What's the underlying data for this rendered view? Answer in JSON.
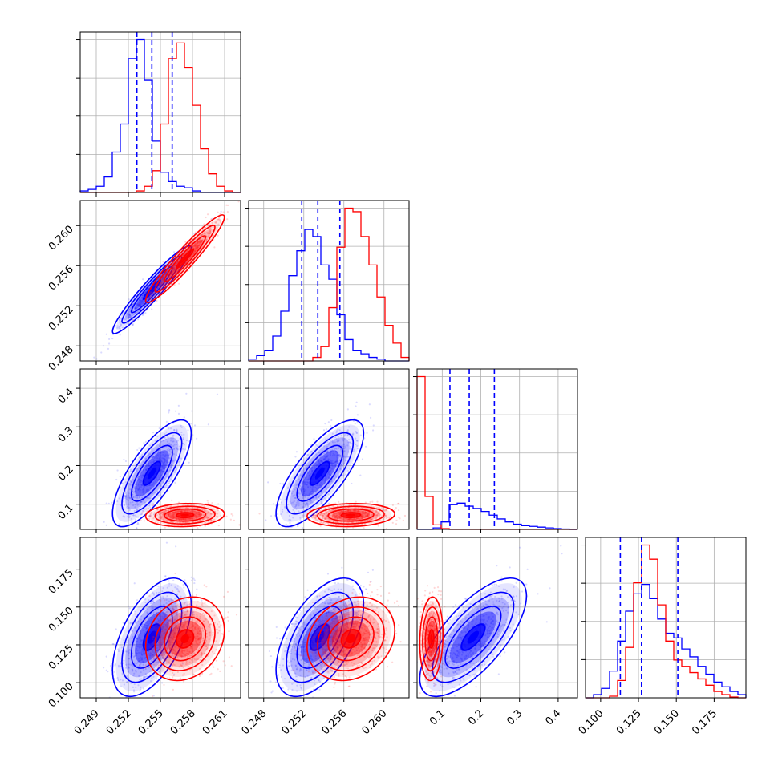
{
  "chart_data": {
    "type": "corner",
    "title": "",
    "series": [
      {
        "name": "",
        "color": "#0000ff"
      },
      {
        "name": "",
        "color": "#ff0000"
      }
    ],
    "parameters": [
      {
        "index": 0,
        "range": [
          0.2475,
          0.2625
        ],
        "ticks": [
          0.249,
          0.252,
          0.255,
          0.258,
          0.261
        ],
        "tick_labels": [
          "0.249",
          "0.252",
          "0.255",
          "0.258",
          "0.261"
        ],
        "quantiles_blue": [
          0.2528,
          0.2542,
          0.2561
        ]
      },
      {
        "index": 1,
        "range": [
          0.2465,
          0.2625
        ],
        "ticks": [
          0.248,
          0.252,
          0.256,
          0.26
        ],
        "tick_labels": [
          "0.248",
          "0.252",
          "0.256",
          "0.260"
        ],
        "quantiles_blue": [
          0.2518,
          0.2534,
          0.2556
        ]
      },
      {
        "index": 2,
        "range": [
          0.035,
          0.45
        ],
        "ticks": [
          0.1,
          0.2,
          0.3,
          0.4
        ],
        "tick_labels": [
          "0.1",
          "0.2",
          "0.3",
          "0.4"
        ],
        "quantiles_blue": [
          0.12,
          0.17,
          0.235
        ]
      },
      {
        "index": 3,
        "range": [
          0.09,
          0.196
        ],
        "ticks": [
          0.1,
          0.125,
          0.15,
          0.175
        ],
        "tick_labels": [
          "0.100",
          "0.125",
          "0.150",
          "0.175"
        ],
        "quantiles_blue": [
          0.113,
          0.127,
          0.151
        ]
      }
    ],
    "histograms": [
      {
        "param": 0,
        "bins": 20,
        "blue": [
          1,
          2,
          4,
          10,
          26,
          44,
          86,
          98,
          72,
          33,
          13,
          7,
          4,
          3,
          1,
          0,
          0,
          0,
          0,
          0
        ],
        "red": [
          0,
          0,
          0,
          0,
          0,
          0,
          0,
          1,
          4,
          14,
          44,
          86,
          96,
          80,
          56,
          28,
          12,
          4,
          1,
          0
        ]
      },
      {
        "param": 1,
        "bins": 20,
        "blue": [
          1,
          3,
          6,
          14,
          28,
          48,
          62,
          74,
          70,
          54,
          46,
          26,
          12,
          6,
          4,
          2,
          1,
          0,
          0,
          0
        ],
        "red": [
          0,
          0,
          0,
          0,
          0,
          0,
          0,
          0,
          2,
          8,
          30,
          64,
          86,
          84,
          70,
          54,
          36,
          20,
          10,
          2
        ]
      },
      {
        "param": 2,
        "bins": 20,
        "blue": [
          0,
          0,
          4,
          20,
          66,
          70,
          62,
          56,
          48,
          38,
          28,
          20,
          14,
          10,
          8,
          6,
          4,
          2,
          1,
          0
        ],
        "red": [
          408,
          88,
          12,
          2,
          0,
          0,
          0,
          0,
          0,
          0,
          0,
          0,
          0,
          0,
          0,
          0,
          0,
          0,
          0,
          0
        ]
      },
      {
        "param": 3,
        "bins": 20,
        "blue": [
          0,
          4,
          12,
          34,
          72,
          110,
          132,
          144,
          126,
          100,
          82,
          76,
          62,
          52,
          40,
          30,
          20,
          14,
          8,
          4
        ],
        "red": [
          0,
          0,
          0,
          2,
          22,
          64,
          146,
          194,
          176,
          118,
          72,
          48,
          40,
          32,
          24,
          16,
          8,
          4,
          1,
          0
        ]
      }
    ],
    "pairs": [
      {
        "x": 0,
        "y": 1,
        "corr_blue": 0.95,
        "corr_red": 0.95
      },
      {
        "x": 0,
        "y": 2,
        "corr_blue": 0.75,
        "corr_red": 0.1
      },
      {
        "x": 1,
        "y": 2,
        "corr_blue": 0.75,
        "corr_red": 0.1
      },
      {
        "x": 0,
        "y": 3,
        "corr_blue": 0.55,
        "corr_red": 0.2
      },
      {
        "x": 1,
        "y": 3,
        "corr_blue": 0.55,
        "corr_red": 0.2
      },
      {
        "x": 2,
        "y": 3,
        "corr_blue": 0.7,
        "corr_red": 0.1
      }
    ],
    "distributions": {
      "blue": {
        "mean": [
          0.2542,
          0.2536,
          0.18,
          0.13
        ],
        "sd": [
          0.0016,
          0.0019,
          0.06,
          0.017
        ]
      },
      "red": {
        "mean": [
          0.2573,
          0.2567,
          0.072,
          0.129
        ],
        "sd": [
          0.0016,
          0.0019,
          0.013,
          0.012
        ]
      }
    },
    "grid": true,
    "legend": "none"
  }
}
